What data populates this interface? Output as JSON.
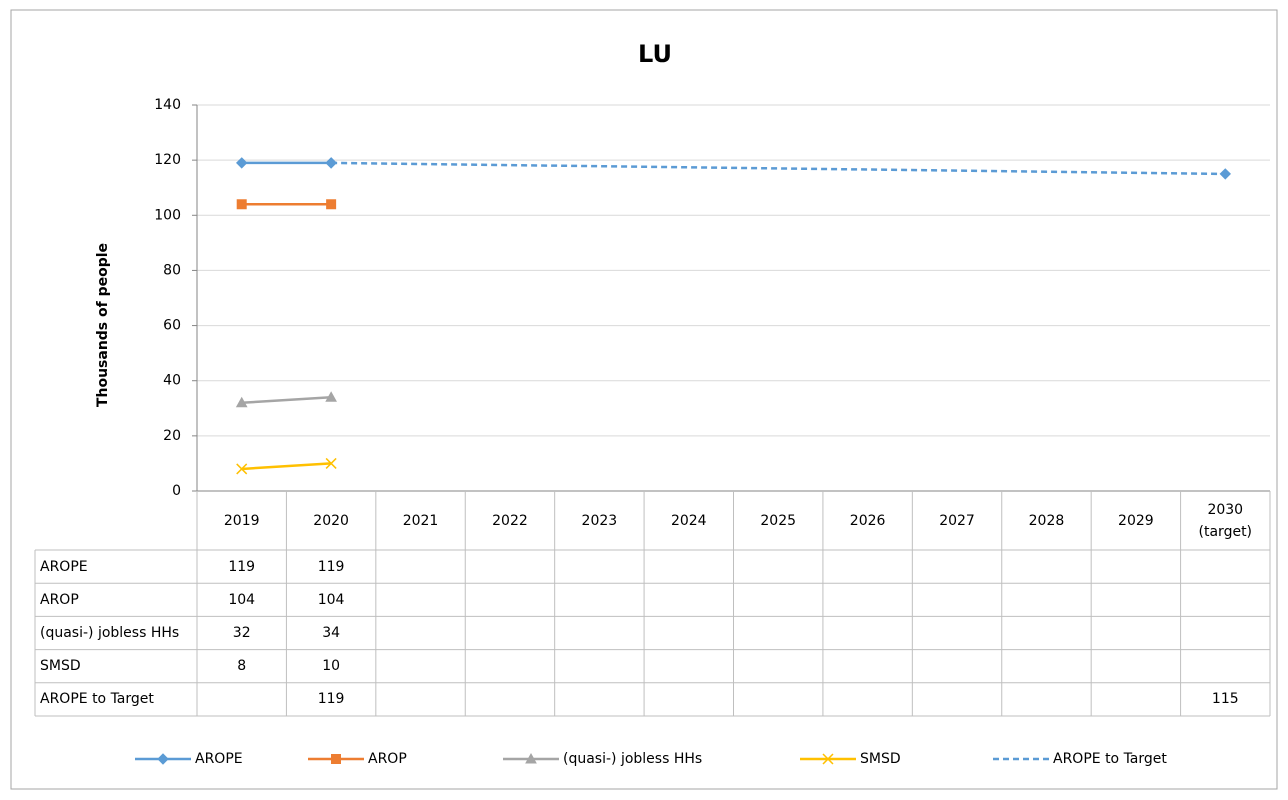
{
  "chart_data": {
    "type": "line",
    "title": "LU",
    "y_label": "Thousands of people",
    "categories": [
      "2019",
      "2020",
      "2021",
      "2022",
      "2023",
      "2024",
      "2025",
      "2026",
      "2027",
      "2028",
      "2029",
      "2030\n(target)"
    ],
    "series": [
      {
        "name": "AROPE",
        "color": "#5b9bd5",
        "marker": "diamond",
        "values": [
          119,
          119,
          null,
          null,
          null,
          null,
          null,
          null,
          null,
          null,
          null,
          null
        ]
      },
      {
        "name": "AROP",
        "color": "#ed7d31",
        "marker": "square",
        "values": [
          104,
          104,
          null,
          null,
          null,
          null,
          null,
          null,
          null,
          null,
          null,
          null
        ]
      },
      {
        "name": "(quasi-) jobless HHs",
        "color": "#a5a5a5",
        "marker": "triangle",
        "values": [
          32,
          34,
          null,
          null,
          null,
          null,
          null,
          null,
          null,
          null,
          null,
          null
        ]
      },
      {
        "name": "SMSD",
        "color": "#ffc000",
        "marker": "x",
        "values": [
          8,
          10,
          null,
          null,
          null,
          null,
          null,
          null,
          null,
          null,
          null,
          null
        ]
      },
      {
        "name": "AROPE to Target",
        "color": "#5b9bd5",
        "marker": "diamond",
        "dashed": true,
        "connect_gaps": true,
        "values": [
          null,
          119,
          null,
          null,
          null,
          null,
          null,
          null,
          null,
          null,
          null,
          115
        ]
      }
    ],
    "ylim": [
      0,
      140
    ],
    "yticks": [
      0,
      20,
      40,
      60,
      80,
      100,
      120,
      140
    ],
    "grid": true,
    "legend": "bottom",
    "data_table": true
  }
}
